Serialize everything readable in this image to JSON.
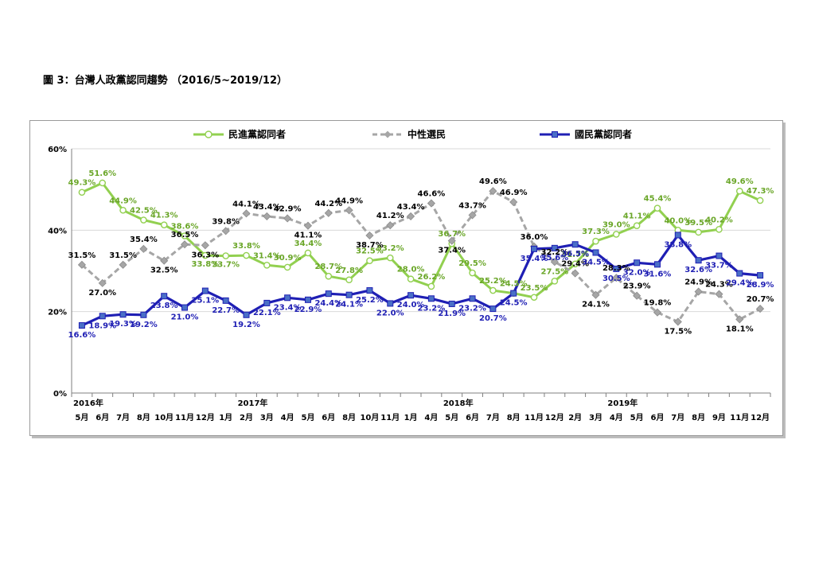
{
  "page": {
    "title": "圖 3：台灣人政黨認同趨勢 （2016/5~2019/12）"
  },
  "chart_data": {
    "type": "line",
    "title": "",
    "xlabel": "",
    "ylabel": "",
    "ylim": [
      0,
      60
    ],
    "y_ticks": [
      "0%",
      "20%",
      "40%",
      "60%"
    ],
    "grid": "horizontal",
    "legend_position": "top",
    "year_labels": [
      {
        "label": "2016年",
        "index": 0
      },
      {
        "label": "2017年",
        "index": 8
      },
      {
        "label": "2018年",
        "index": 18
      },
      {
        "label": "2019年",
        "index": 26
      }
    ],
    "categories": [
      "5月",
      "6月",
      "7月",
      "8月",
      "10月",
      "11月",
      "12月",
      "1月",
      "2月",
      "3月",
      "4月",
      "5月",
      "6月",
      "8月",
      "10月",
      "11月",
      "1月",
      "4月",
      "5月",
      "6月",
      "7月",
      "8月",
      "11月",
      "12月",
      "2月",
      "3月",
      "4月",
      "5月",
      "6月",
      "7月",
      "8月",
      "9月",
      "11月",
      "12月"
    ],
    "series": [
      {
        "name": "民進黨認同者",
        "color": "#92d050",
        "label_color": "#6aa628",
        "dash": "solid",
        "marker": "circle",
        "values": [
          49.3,
          51.6,
          44.9,
          42.5,
          41.3,
          38.6,
          33.8,
          33.7,
          33.8,
          31.4,
          30.9,
          34.4,
          28.7,
          27.8,
          32.5,
          33.2,
          28.0,
          26.2,
          36.7,
          29.5,
          25.2,
          24.5,
          23.5,
          27.5,
          31.7,
          37.3,
          39.0,
          41.1,
          45.4,
          40.0,
          39.5,
          40.2,
          49.6,
          47.3
        ],
        "labels": [
          "49.3%",
          "51.6%",
          "44.9%",
          "42.5%",
          "41.3%",
          "38.6%",
          "33.8%",
          "33.7%",
          "33.8%",
          "31.4%",
          "30.9%",
          "34.4%",
          "28.7%",
          "27.8%",
          "32.5%",
          "33.2%",
          "28.0%",
          "26.2%",
          "36.7%",
          "29.5%",
          "25.2%",
          "24.5%",
          "23.5%",
          "27.5%",
          "31.7%",
          "37.3%",
          "39.0%",
          "41.1%",
          "45.4%",
          "40.0%",
          "39.5%",
          "40.2%",
          "49.6%",
          "47.3%"
        ]
      },
      {
        "name": "中性選民",
        "color": "#a6a6a6",
        "label_color": "#000000",
        "dash": "dashed",
        "marker": "diamond",
        "values": [
          31.5,
          27.0,
          31.5,
          35.4,
          32.5,
          36.5,
          36.3,
          39.8,
          44.1,
          43.4,
          42.9,
          41.1,
          44.2,
          44.9,
          38.7,
          41.2,
          43.4,
          46.6,
          37.4,
          43.7,
          49.6,
          46.9,
          36.0,
          32.2,
          29.4,
          24.1,
          28.3,
          23.9,
          19.8,
          17.5,
          24.9,
          24.3,
          18.1,
          20.7
        ],
        "labels": [
          "31.5%",
          "27.0%",
          "31.5%",
          "35.4%",
          "32.5%",
          "36.5%",
          "36.3%",
          "39.8%",
          "44.1%",
          "43.4%",
          "42.9%",
          "41.1%",
          "44.2%",
          "44.9%",
          "38.7%",
          "41.2%",
          "43.4%",
          "46.6%",
          "37.4%",
          "43.7%",
          "49.6%",
          "46.9%",
          "36.0%",
          "32.2%",
          "29.4%",
          "24.1%",
          "28.3%",
          "23.9%",
          "19.8%",
          "17.5%",
          "24.9%",
          "24.3%",
          "18.1%",
          "20.7%"
        ]
      },
      {
        "name": "國民黨認同者",
        "color": "#1f1fb4",
        "label_color": "#1f1fb4",
        "dash": "solid",
        "marker": "square",
        "values": [
          16.6,
          18.9,
          19.3,
          19.2,
          23.8,
          21.0,
          25.1,
          22.7,
          19.2,
          22.1,
          23.4,
          22.9,
          24.4,
          24.1,
          25.2,
          22.0,
          24.0,
          23.2,
          21.9,
          23.2,
          20.7,
          24.5,
          35.4,
          35.6,
          36.5,
          34.5,
          30.5,
          32.0,
          31.6,
          38.8,
          32.6,
          33.7,
          29.4,
          28.9
        ],
        "labels": [
          "16.6%",
          "18.9%",
          "19.3%",
          "19.2%",
          "23.8%",
          "21.0%",
          "25.1%",
          "22.7%",
          "19.2%",
          "22.1%",
          "23.4%",
          "22.9%",
          "24.4%",
          "24.1%",
          "25.2%",
          "22.0%",
          "24.0%",
          "23.2%",
          "21.9%",
          "23.2%",
          "20.7%",
          "24.5%",
          "35.4%",
          "35.6%",
          "36.5%",
          "34.5%",
          "30.5%",
          "32.0%",
          "31.6%",
          "38.8%",
          "32.6%",
          "33.7%",
          "29.4%",
          "28.9%"
        ]
      }
    ]
  }
}
